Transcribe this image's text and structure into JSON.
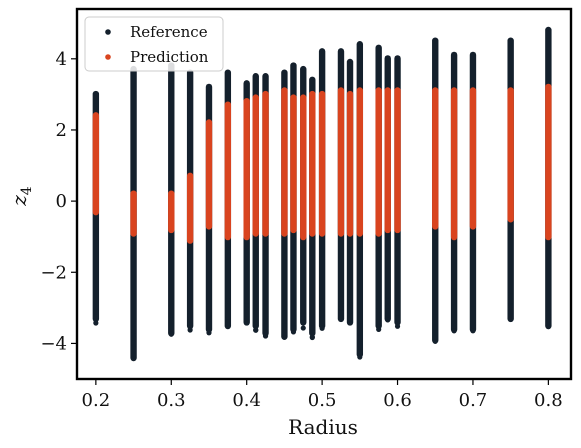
{
  "chart_data": {
    "type": "scatter",
    "xlabel": "Radius",
    "ylabel": "z",
    "ylabel_subscript": "4",
    "xlim": [
      0.175,
      0.83
    ],
    "ylim": [
      -5.0,
      5.4
    ],
    "xticks": [
      {
        "value": 0.2,
        "label": "0.2"
      },
      {
        "value": 0.3,
        "label": "0.3"
      },
      {
        "value": 0.4,
        "label": "0.4"
      },
      {
        "value": 0.5,
        "label": "0.5"
      },
      {
        "value": 0.6,
        "label": "0.6"
      },
      {
        "value": 0.7,
        "label": "0.7"
      },
      {
        "value": 0.8,
        "label": "0.8"
      }
    ],
    "yticks": [
      {
        "value": -4,
        "label": "−4"
      },
      {
        "value": -2,
        "label": "−2"
      },
      {
        "value": 0,
        "label": "0"
      },
      {
        "value": 2,
        "label": "2"
      },
      {
        "value": 4,
        "label": "4"
      }
    ],
    "grid": false,
    "legend_position": "top-left",
    "series": [
      {
        "name": "Reference",
        "color": "#14202c",
        "columns": [
          {
            "x": 0.2,
            "ymin": -3.4,
            "ymax": 3.1
          },
          {
            "x": 0.25,
            "ymin": -4.5,
            "ymax": 3.8
          },
          {
            "x": 0.3,
            "ymin": -3.8,
            "ymax": 3.9
          },
          {
            "x": 0.325,
            "ymin": -3.6,
            "ymax": 3.7
          },
          {
            "x": 0.35,
            "ymin": -3.7,
            "ymax": 3.3
          },
          {
            "x": 0.375,
            "ymin": -3.6,
            "ymax": 3.7
          },
          {
            "x": 0.4,
            "ymin": -3.5,
            "ymax": 3.4
          },
          {
            "x": 0.412,
            "ymin": -3.6,
            "ymax": 3.6
          },
          {
            "x": 0.425,
            "ymin": -3.8,
            "ymax": 3.6
          },
          {
            "x": 0.45,
            "ymin": -3.9,
            "ymax": 3.7
          },
          {
            "x": 0.462,
            "ymin": -3.7,
            "ymax": 3.9
          },
          {
            "x": 0.475,
            "ymin": -3.5,
            "ymax": 3.8
          },
          {
            "x": 0.487,
            "ymin": -3.8,
            "ymax": 3.5
          },
          {
            "x": 0.5,
            "ymin": -3.6,
            "ymax": 4.3
          },
          {
            "x": 0.525,
            "ymin": -3.4,
            "ymax": 4.3
          },
          {
            "x": 0.537,
            "ymin": -3.5,
            "ymax": 4.0
          },
          {
            "x": 0.55,
            "ymin": -4.4,
            "ymax": 4.5
          },
          {
            "x": 0.575,
            "ymin": -3.6,
            "ymax": 4.4
          },
          {
            "x": 0.587,
            "ymin": -3.4,
            "ymax": 4.1
          },
          {
            "x": 0.6,
            "ymin": -3.5,
            "ymax": 4.1
          },
          {
            "x": 0.65,
            "ymin": -4.0,
            "ymax": 4.6
          },
          {
            "x": 0.675,
            "ymin": -3.7,
            "ymax": 4.2
          },
          {
            "x": 0.7,
            "ymin": -3.7,
            "ymax": 4.2
          },
          {
            "x": 0.75,
            "ymin": -3.4,
            "ymax": 4.6
          },
          {
            "x": 0.8,
            "ymin": -3.6,
            "ymax": 4.9
          }
        ]
      },
      {
        "name": "Prediction",
        "color": "#d9441f",
        "columns": [
          {
            "x": 0.2,
            "ymin": -0.4,
            "ymax": 2.5
          },
          {
            "x": 0.25,
            "ymin": -1.0,
            "ymax": 0.3
          },
          {
            "x": 0.3,
            "ymin": -0.9,
            "ymax": 0.3
          },
          {
            "x": 0.325,
            "ymin": -1.2,
            "ymax": 0.8
          },
          {
            "x": 0.35,
            "ymin": -0.8,
            "ymax": 2.3
          },
          {
            "x": 0.375,
            "ymin": -1.1,
            "ymax": 2.8
          },
          {
            "x": 0.4,
            "ymin": -1.1,
            "ymax": 2.9
          },
          {
            "x": 0.412,
            "ymin": -1.0,
            "ymax": 3.0
          },
          {
            "x": 0.425,
            "ymin": -1.0,
            "ymax": 3.1
          },
          {
            "x": 0.45,
            "ymin": -1.0,
            "ymax": 3.2
          },
          {
            "x": 0.462,
            "ymin": -0.9,
            "ymax": 3.0
          },
          {
            "x": 0.475,
            "ymin": -1.1,
            "ymax": 3.0
          },
          {
            "x": 0.487,
            "ymin": -1.0,
            "ymax": 3.1
          },
          {
            "x": 0.5,
            "ymin": -1.0,
            "ymax": 3.1
          },
          {
            "x": 0.525,
            "ymin": -1.0,
            "ymax": 3.2
          },
          {
            "x": 0.537,
            "ymin": -1.0,
            "ymax": 3.1
          },
          {
            "x": 0.55,
            "ymin": -1.0,
            "ymax": 3.2
          },
          {
            "x": 0.575,
            "ymin": -1.0,
            "ymax": 3.2
          },
          {
            "x": 0.587,
            "ymin": -0.9,
            "ymax": 3.2
          },
          {
            "x": 0.6,
            "ymin": -0.9,
            "ymax": 3.2
          },
          {
            "x": 0.65,
            "ymin": -0.8,
            "ymax": 3.2
          },
          {
            "x": 0.675,
            "ymin": -1.1,
            "ymax": 3.2
          },
          {
            "x": 0.7,
            "ymin": -0.8,
            "ymax": 3.2
          },
          {
            "x": 0.75,
            "ymin": -0.6,
            "ymax": 3.2
          },
          {
            "x": 0.8,
            "ymin": -1.1,
            "ymax": 3.3
          }
        ]
      }
    ]
  }
}
